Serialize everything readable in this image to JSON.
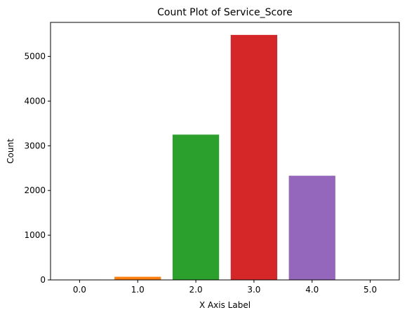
{
  "chart_data": {
    "type": "bar",
    "title": "Count Plot of Service_Score",
    "xlabel": "X Axis Label",
    "ylabel": "Count",
    "categories": [
      "0.0",
      "1.0",
      "2.0",
      "3.0",
      "4.0",
      "5.0"
    ],
    "values": [
      8,
      70,
      3250,
      5480,
      2330,
      8
    ],
    "colors": [
      "#1f77b4",
      "#ff7f0e",
      "#2ca02c",
      "#d62728",
      "#9467bd",
      "#8c564b"
    ],
    "ylim": [
      0,
      5760
    ],
    "yticks": [
      0,
      1000,
      2000,
      3000,
      4000,
      5000
    ],
    "grid": false
  }
}
